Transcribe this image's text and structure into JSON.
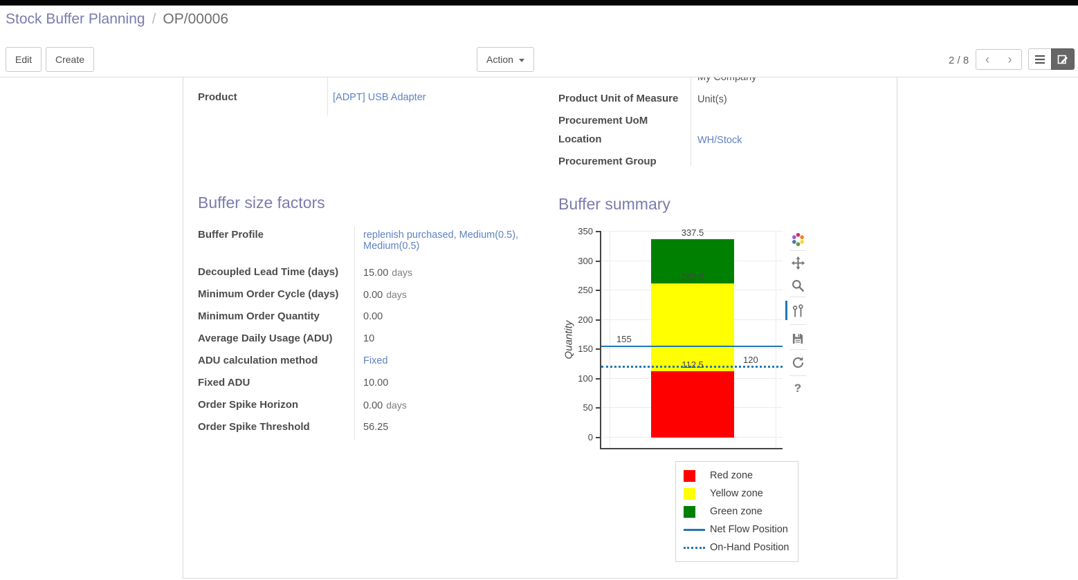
{
  "breadcrumb": {
    "parent": "Stock Buffer Planning",
    "separator": "/",
    "current": "OP/00006"
  },
  "control_panel": {
    "edit_label": "Edit",
    "create_label": "Create",
    "action_label": "Action",
    "pager": "2 / 8",
    "prev_glyph": "‹",
    "next_glyph": "›",
    "icons": [
      "previous-page-icon",
      "next-page-icon",
      "list-view-icon",
      "form-view-icon"
    ]
  },
  "form": {
    "clipped_top_value": "My Company",
    "left_group": {
      "rows": [
        {
          "label": "Product",
          "value": "[ADPT] USB Adapter"
        }
      ]
    },
    "right_group": {
      "rows": [
        {
          "label": "Product Unit of Measure",
          "value": "Unit(s)"
        },
        {
          "label": "Procurement UoM",
          "value": ""
        },
        {
          "label": "Location",
          "value": "WH/Stock"
        },
        {
          "label": "Procurement Group",
          "value": ""
        }
      ]
    },
    "buffer_factors": {
      "title": "Buffer size factors",
      "rows": [
        {
          "label": "Buffer Profile",
          "value": "replenish purchased, Medium(0.5), Medium(0.5)"
        },
        {
          "label": "Decoupled Lead Time (days)",
          "value": "15.00",
          "suffix": "days"
        },
        {
          "label": "Minimum Order Cycle (days)",
          "value": "0.00",
          "suffix": "days"
        },
        {
          "label": "Minimum Order Quantity",
          "value": "0.00"
        },
        {
          "label": "Average Daily Usage (ADU)",
          "value": "10"
        },
        {
          "label": "ADU calculation method",
          "value": "Fixed"
        },
        {
          "label": "Fixed ADU",
          "value": "10.00"
        },
        {
          "label": "Order Spike Horizon",
          "value": "0.00",
          "suffix": "days"
        },
        {
          "label": "Order Spike Threshold",
          "value": "56.25"
        }
      ]
    },
    "buffer_summary_title": "Buffer summary"
  },
  "chart_data": {
    "type": "bar",
    "stacked": true,
    "title": "",
    "xlabel": "",
    "ylabel": "Quantity",
    "ylim": [
      0,
      350
    ],
    "yticks": [
      0,
      50,
      100,
      150,
      200,
      250,
      300,
      350
    ],
    "grid": true,
    "legend_position": "below-right",
    "series": [
      {
        "name": "Red zone",
        "color": "#ff0000",
        "value": 112.5
      },
      {
        "name": "Yellow zone",
        "color": "#ffff00",
        "value": 150
      },
      {
        "name": "Green zone",
        "color": "#008000",
        "value": 75
      }
    ],
    "segment_labels": [
      {
        "text": "112.5",
        "at": 112.5
      },
      {
        "text": "262.5",
        "at": 262.5
      },
      {
        "text": "337.5",
        "at": 337.5
      }
    ],
    "lines": [
      {
        "name": "Net Flow Position",
        "value": 155,
        "label": "155",
        "style": "solid",
        "color": "#1f77b4",
        "label_side": "left"
      },
      {
        "name": "On-Hand Position",
        "value": 120,
        "label": "120",
        "style": "dotted",
        "color": "#1f77b4",
        "label_side": "right"
      }
    ],
    "legend": [
      {
        "label": "Red zone",
        "swatch": "square",
        "color": "#ff0000"
      },
      {
        "label": "Yellow zone",
        "swatch": "square",
        "color": "#ffff00"
      },
      {
        "label": "Green zone",
        "swatch": "square",
        "color": "#008000"
      },
      {
        "label": "Net Flow Position",
        "swatch": "line",
        "color": "#1f77b4"
      },
      {
        "label": "On-Hand Position",
        "swatch": "dotted",
        "color": "#1f77b4"
      }
    ]
  },
  "modebar": {
    "icons": [
      "plotly-logo-icon",
      "pan-icon",
      "zoom-icon",
      "compare-on-hover-icon",
      "save-icon",
      "reset-axes-icon",
      "help-icon"
    ],
    "help_glyph": "?"
  },
  "accent_colors": {
    "heading": "#7c7bad",
    "link": "#5e82c3",
    "chart_line": "#1f77b4",
    "active_view_button": "#666666"
  }
}
